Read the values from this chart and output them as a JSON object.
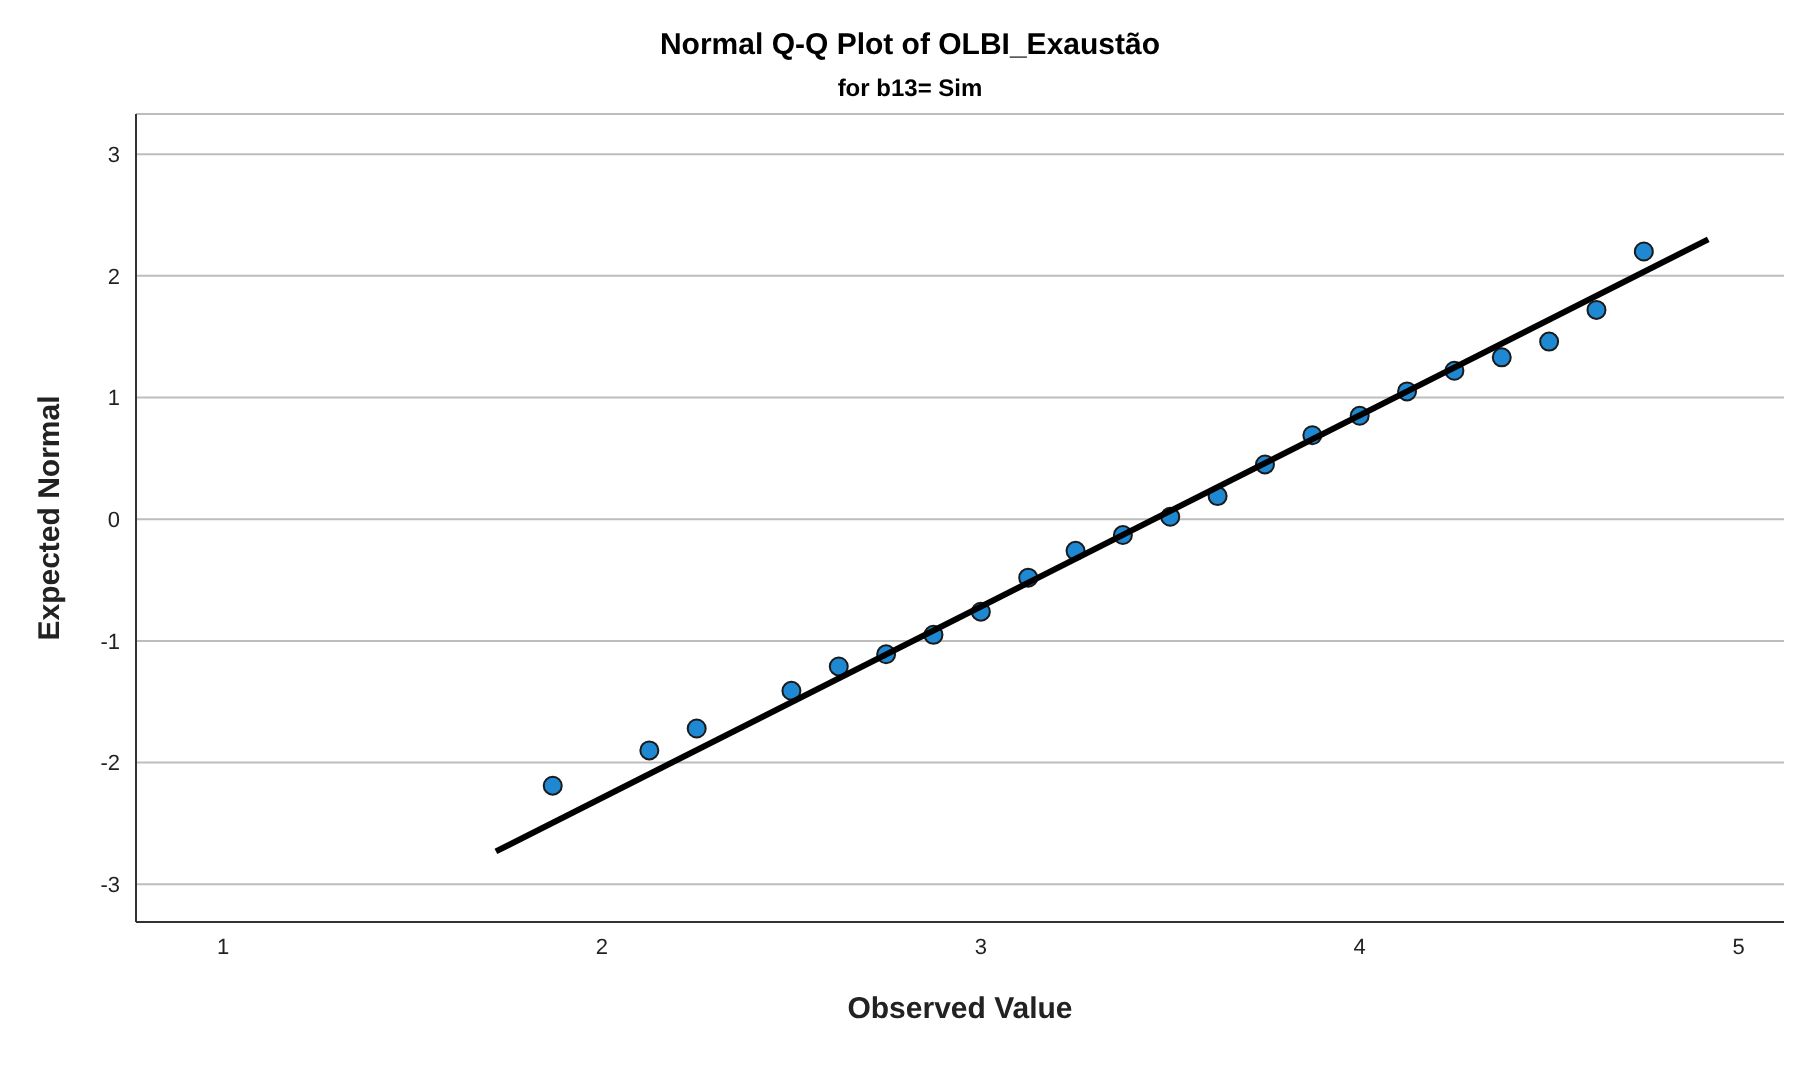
{
  "chart_data": {
    "type": "scatter",
    "title": "Normal Q-Q Plot of OLBI_Exaustão",
    "subtitle": "for b13= Sim",
    "xlabel": "Observed Value",
    "ylabel": "Expected Normal",
    "xlim": [
      0.77,
      5.12
    ],
    "xticks": [
      1,
      2,
      3,
      4,
      5
    ],
    "ylim": [
      -3.31,
      3.33
    ],
    "yticks": [
      -3,
      -2,
      -1,
      0,
      1,
      2,
      3
    ],
    "grid": "y",
    "series": [
      {
        "marker": "circle",
        "color": "#1e88d2",
        "x": [
          1.87,
          2.125,
          2.25,
          2.5,
          2.625,
          2.75,
          2.875,
          3.0,
          3.125,
          3.25,
          3.375,
          3.5,
          3.625,
          3.75,
          3.875,
          4.0,
          4.125,
          4.25,
          4.375,
          4.5,
          4.625,
          4.75
        ],
        "values": [
          -2.19,
          -1.9,
          -1.72,
          -1.41,
          -1.21,
          -1.11,
          -0.95,
          -0.76,
          -0.48,
          -0.26,
          -0.13,
          0.02,
          0.19,
          0.45,
          0.69,
          0.85,
          1.05,
          1.22,
          1.33,
          1.46,
          1.72,
          2.2
        ]
      },
      {
        "type": "line",
        "marker": "none",
        "color": "#000000",
        "line_style": "solid",
        "x": [
          1.72,
          4.92
        ],
        "values": [
          -2.73,
          2.3
        ]
      }
    ]
  }
}
